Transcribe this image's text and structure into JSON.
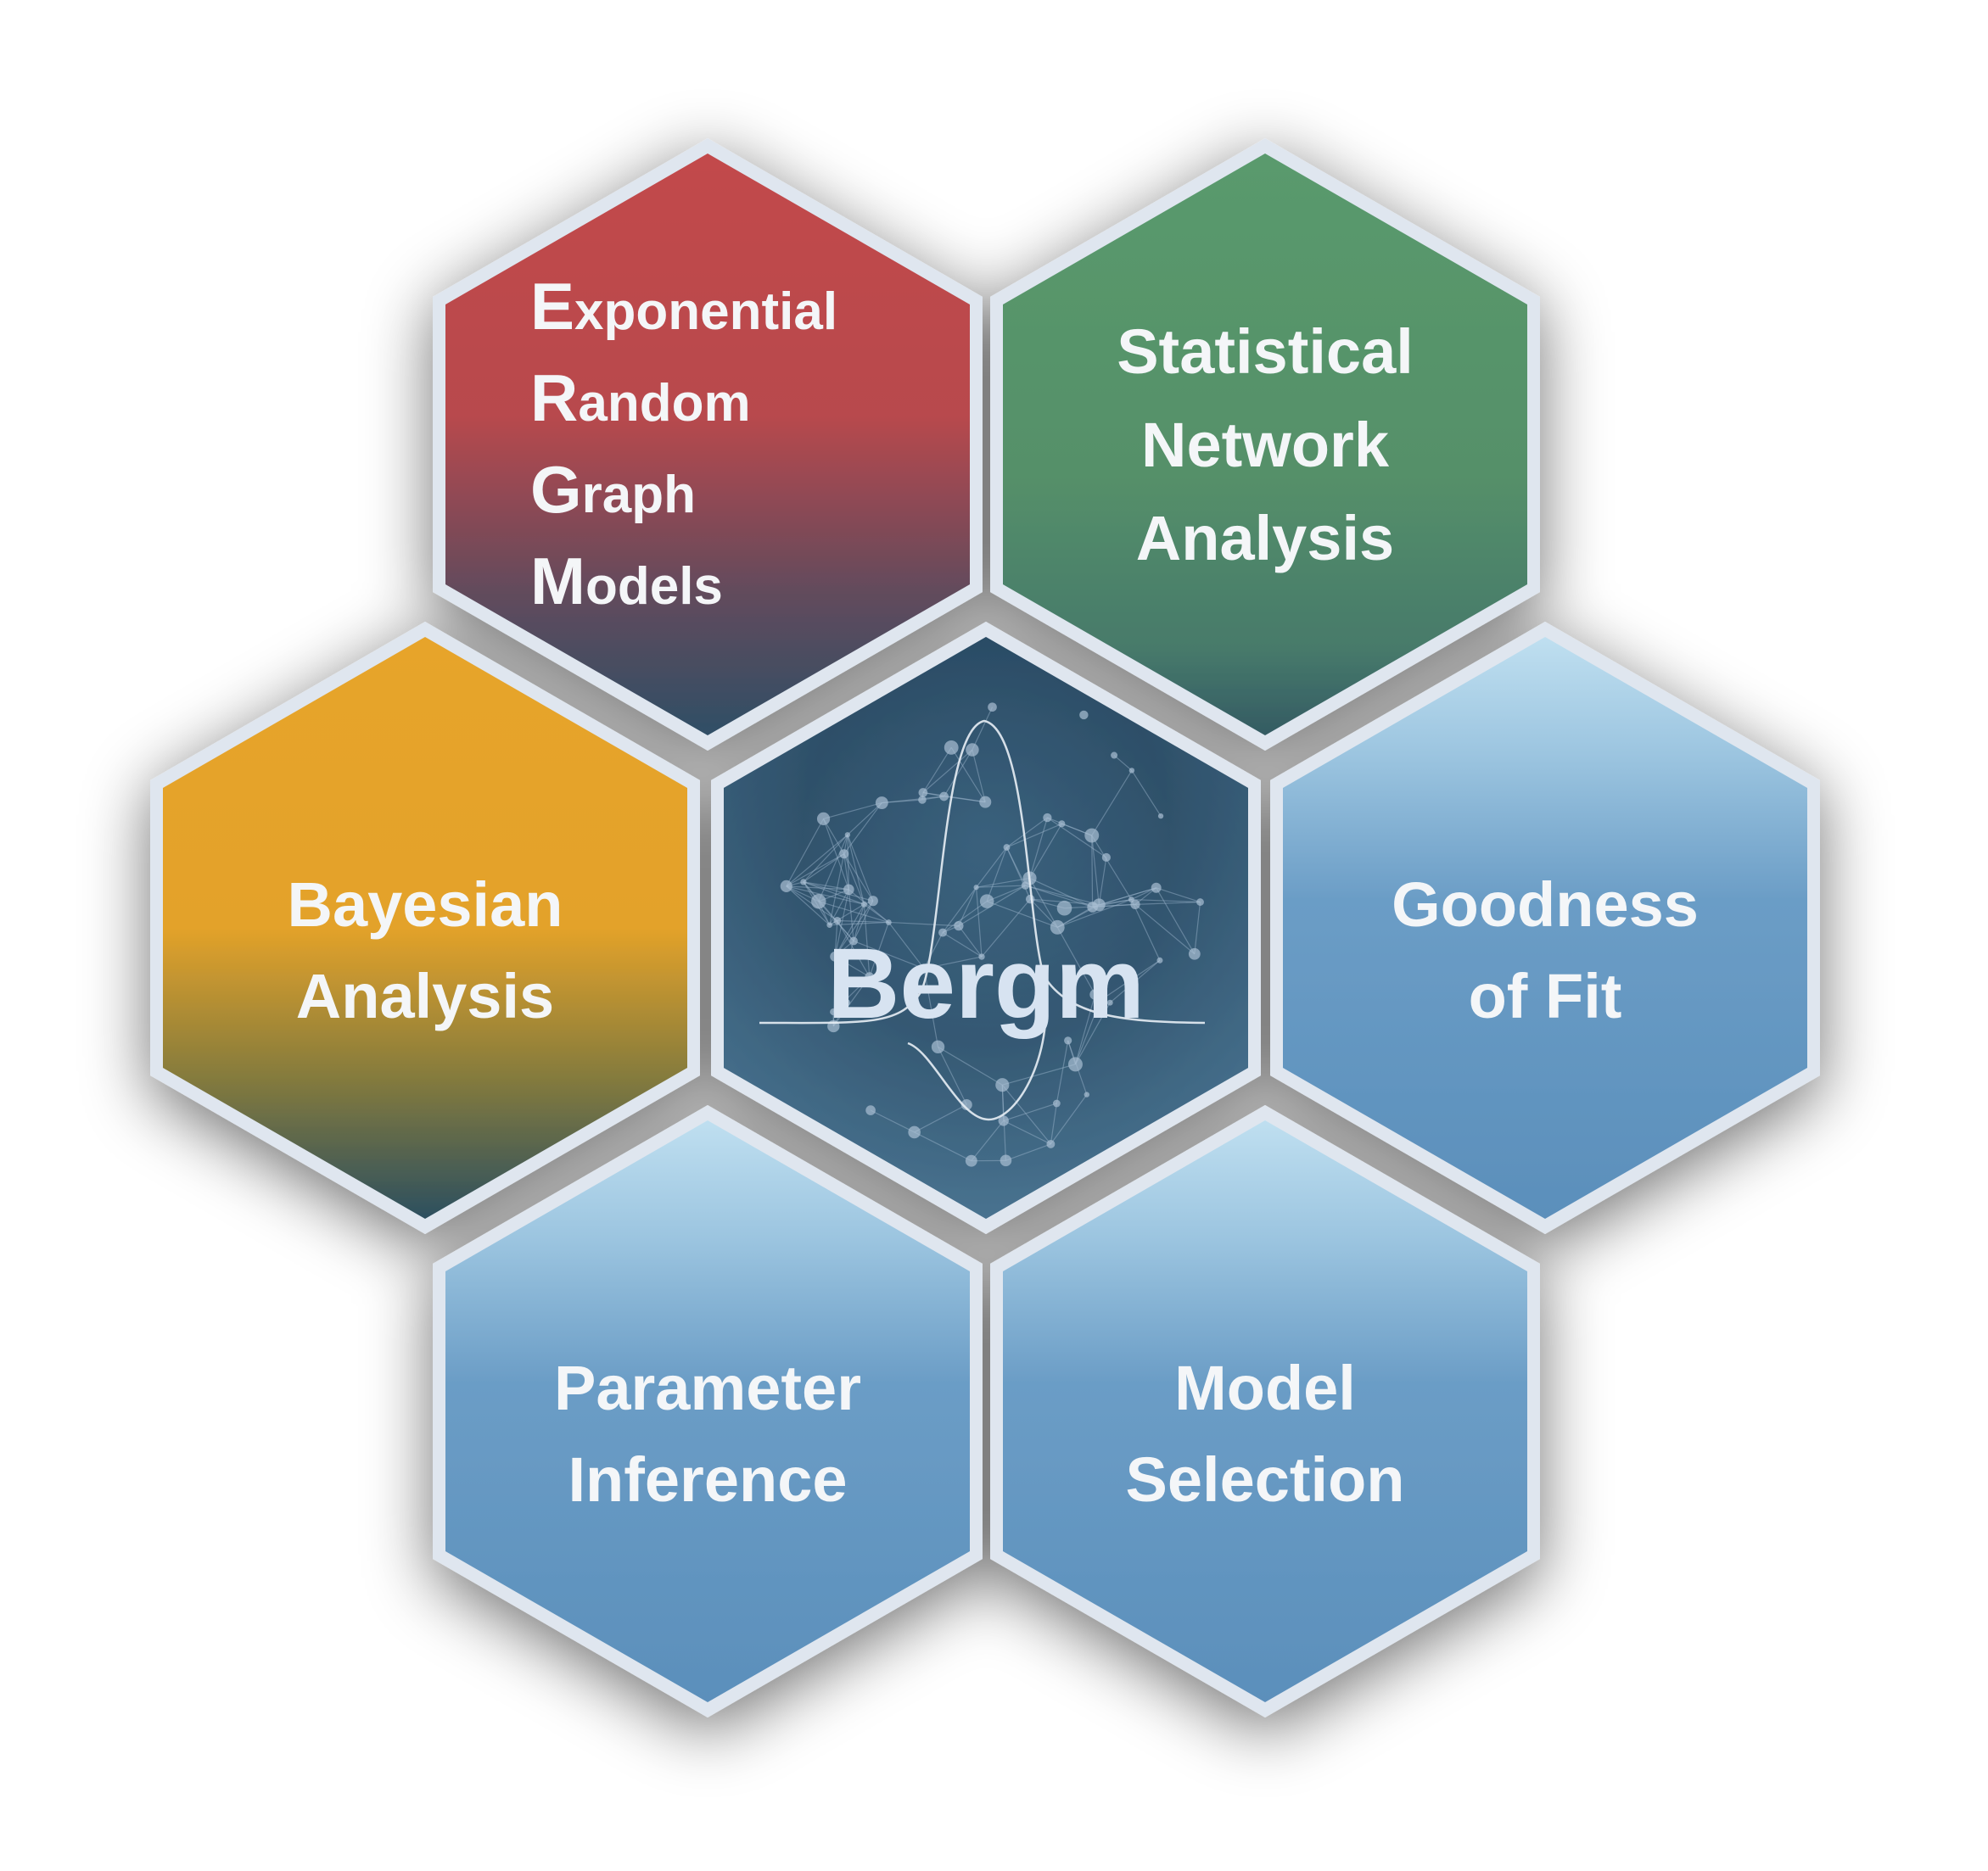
{
  "center": {
    "title": "Bergm",
    "icon": "bell-curve-network-icon"
  },
  "hexagons": {
    "ergm": {
      "lines": [
        {
          "initial": "E",
          "rest": "xponential"
        },
        {
          "initial": "R",
          "rest": "andom"
        },
        {
          "initial": "G",
          "rest": "raph"
        },
        {
          "initial": "M",
          "rest": "odels"
        }
      ],
      "color_top": "#c24a4b",
      "color_bottom": "#2f4f66"
    },
    "statistical_network_analysis": {
      "lines": [
        "Statistical",
        "Network",
        "Analysis"
      ],
      "color_top": "#5a9a6d",
      "color_bottom": "#355f63"
    },
    "bayesian_analysis": {
      "lines": [
        "Bayesian",
        "Analysis"
      ],
      "color_top": "#e7a42a",
      "color_bottom": "#2c4f5f"
    },
    "goodness_of_fit": {
      "lines": [
        "Goodness",
        "of Fit"
      ],
      "color_top": "#b6d7ea",
      "color_bottom": "#5b8fbb"
    },
    "parameter_inference": {
      "lines": [
        "Parameter",
        "Inference"
      ],
      "color_top": "#b6d7ea",
      "color_bottom": "#5b8fbb"
    },
    "model_selection": {
      "lines": [
        "Model",
        "Selection"
      ],
      "color_top": "#b6d7ea",
      "color_bottom": "#5b8fbb"
    }
  },
  "colors": {
    "border": "#dfe6ef",
    "center_top": "#294a63",
    "center_bottom": "#4d7896",
    "text": "#f4f6f8"
  }
}
